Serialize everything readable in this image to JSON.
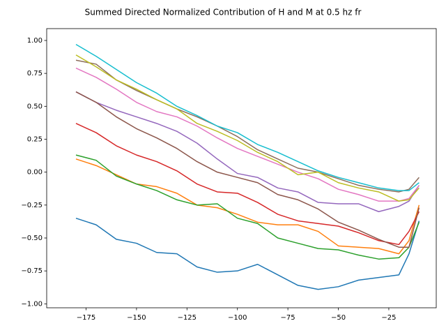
{
  "chart_data": {
    "type": "line",
    "title": "Summed Directed Normalized Contribution of H and M at 0.5 hz fr",
    "x": [
      -180,
      -170,
      -160,
      -150,
      -140,
      -130,
      -120,
      -110,
      -100,
      -90,
      -80,
      -70,
      -60,
      -50,
      -40,
      -30,
      -20,
      -15,
      -10
    ],
    "series": [
      {
        "color": "#1f77b4",
        "values": [
          -0.35,
          -0.4,
          -0.51,
          -0.54,
          -0.61,
          -0.62,
          -0.72,
          -0.76,
          -0.75,
          -0.7,
          -0.78,
          -0.86,
          -0.89,
          -0.87,
          -0.82,
          -0.8,
          -0.78,
          -0.62,
          -0.37
        ]
      },
      {
        "color": "#ff7f0e",
        "values": [
          0.1,
          0.05,
          -0.02,
          -0.09,
          -0.11,
          -0.16,
          -0.25,
          -0.27,
          -0.32,
          -0.38,
          -0.4,
          -0.4,
          -0.45,
          -0.56,
          -0.57,
          -0.58,
          -0.62,
          -0.52,
          -0.25
        ]
      },
      {
        "color": "#2ca02c",
        "values": [
          0.13,
          0.09,
          -0.03,
          -0.09,
          -0.14,
          -0.21,
          -0.25,
          -0.24,
          -0.35,
          -0.39,
          -0.5,
          -0.54,
          -0.58,
          -0.59,
          -0.63,
          -0.66,
          -0.65,
          -0.57,
          -0.38
        ]
      },
      {
        "color": "#d62728",
        "values": [
          0.37,
          0.3,
          0.2,
          0.13,
          0.08,
          0.01,
          -0.09,
          -0.15,
          -0.16,
          -0.23,
          -0.32,
          -0.37,
          -0.39,
          -0.41,
          -0.46,
          -0.52,
          -0.55,
          -0.45,
          -0.3
        ]
      },
      {
        "color": "#9467bd",
        "values": [
          0.61,
          0.53,
          0.47,
          0.42,
          0.37,
          0.31,
          0.22,
          0.1,
          -0.01,
          -0.04,
          -0.12,
          -0.15,
          -0.23,
          -0.24,
          -0.24,
          -0.3,
          -0.26,
          -0.22,
          -0.1
        ]
      },
      {
        "color": "#8c564b",
        "values": [
          0.61,
          0.53,
          0.42,
          0.33,
          0.26,
          0.18,
          0.08,
          0.0,
          -0.04,
          -0.08,
          -0.17,
          -0.21,
          -0.28,
          -0.38,
          -0.44,
          -0.51,
          -0.57,
          -0.57,
          -0.27
        ]
      },
      {
        "color": "#e377c2",
        "values": [
          0.79,
          0.72,
          0.63,
          0.53,
          0.46,
          0.42,
          0.35,
          0.26,
          0.18,
          0.12,
          0.06,
          0.0,
          -0.05,
          -0.13,
          -0.17,
          -0.22,
          -0.22,
          -0.2,
          -0.1
        ]
      },
      {
        "color": "#8c6d5b",
        "values": [
          0.85,
          0.82,
          0.7,
          0.62,
          0.55,
          0.48,
          0.42,
          0.35,
          0.27,
          0.17,
          0.1,
          0.03,
          0.0,
          -0.05,
          -0.1,
          -0.13,
          -0.15,
          -0.13,
          -0.04
        ]
      },
      {
        "color": "#bcbd22",
        "values": [
          0.89,
          0.8,
          0.7,
          0.63,
          0.55,
          0.48,
          0.37,
          0.31,
          0.24,
          0.15,
          0.08,
          -0.02,
          0.0,
          -0.08,
          -0.12,
          -0.15,
          -0.22,
          -0.21,
          -0.12
        ]
      },
      {
        "color": "#17becf",
        "values": [
          0.97,
          0.88,
          0.78,
          0.68,
          0.6,
          0.5,
          0.43,
          0.35,
          0.3,
          0.21,
          0.15,
          0.08,
          0.01,
          -0.04,
          -0.08,
          -0.12,
          -0.14,
          -0.14,
          -0.08
        ]
      }
    ],
    "xlim": [
      -194.5,
      -1.5
    ],
    "ylim": [
      -1.03,
      1.09
    ],
    "xticks": [
      {
        "value": -175,
        "label": "−175"
      },
      {
        "value": -150,
        "label": "−150"
      },
      {
        "value": -125,
        "label": "−125"
      },
      {
        "value": -100,
        "label": "−100"
      },
      {
        "value": -75,
        "label": "−75"
      },
      {
        "value": -50,
        "label": "−50"
      },
      {
        "value": -25,
        "label": "−25"
      }
    ],
    "yticks": [
      {
        "value": -1,
        "label": "−1.00"
      },
      {
        "value": -0.75,
        "label": "−0.75"
      },
      {
        "value": -0.5,
        "label": "−0.50"
      },
      {
        "value": -0.25,
        "label": "−0.25"
      },
      {
        "value": 0,
        "label": "0.00"
      },
      {
        "value": 0.25,
        "label": "0.25"
      },
      {
        "value": 0.5,
        "label": "0.50"
      },
      {
        "value": 0.75,
        "label": "0.75"
      },
      {
        "value": 1,
        "label": "1.00"
      }
    ]
  }
}
